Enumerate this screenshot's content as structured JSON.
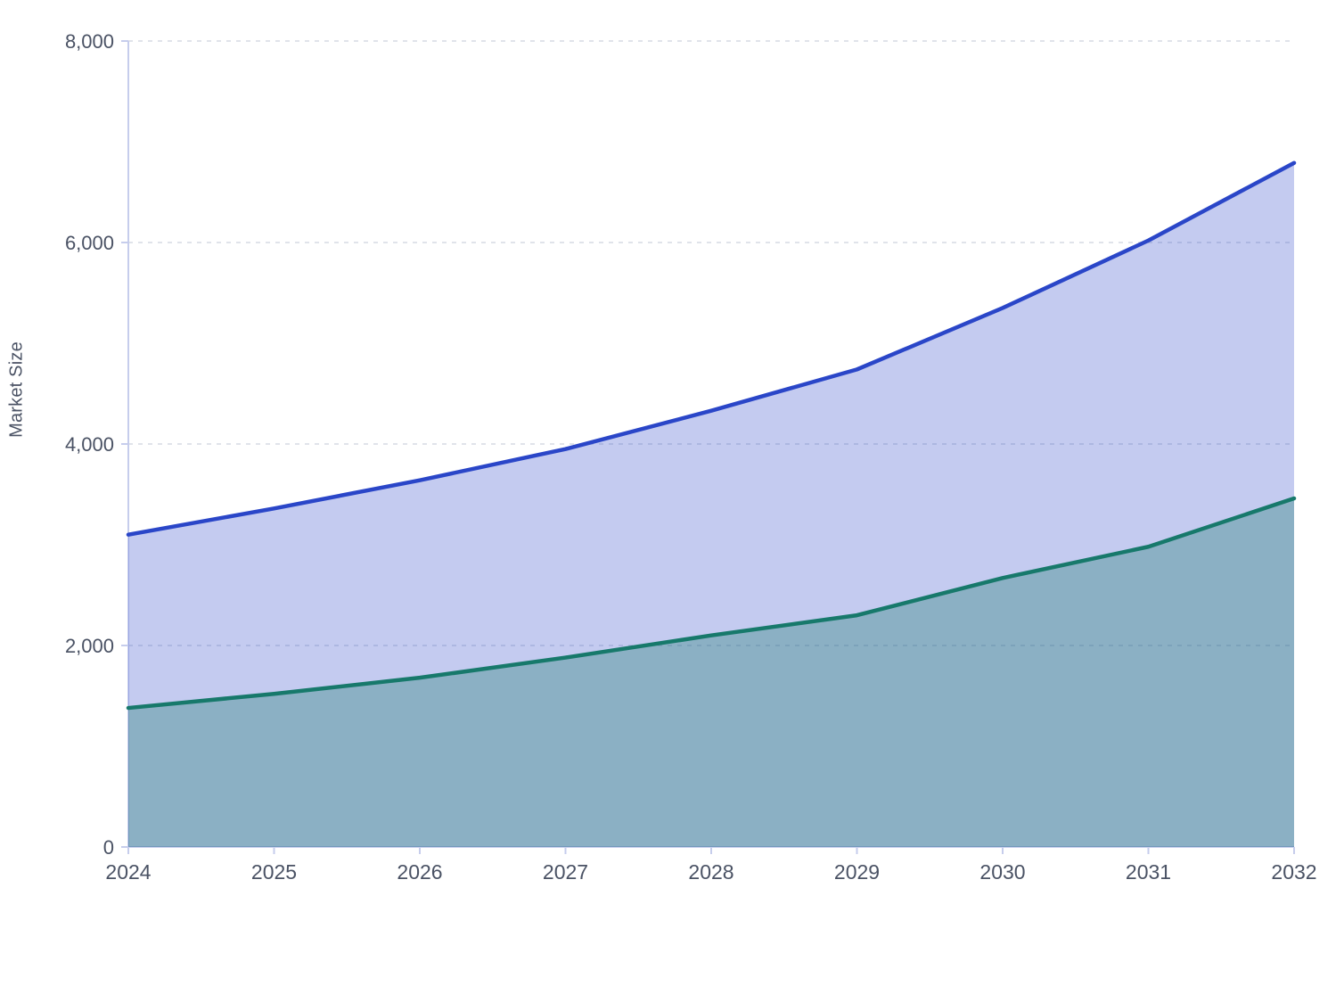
{
  "chart_data": {
    "type": "area",
    "title": "",
    "xlabel": "",
    "ylabel": "Market Size",
    "x": [
      2024,
      2025,
      2026,
      2027,
      2028,
      2029,
      2030,
      2031,
      2032
    ],
    "x_tick_labels": [
      "2024",
      "2025",
      "2026",
      "2027",
      "2028",
      "2029",
      "2030",
      "2031",
      "2032"
    ],
    "ylim": [
      0,
      8000
    ],
    "yticks": {
      "values": [
        0,
        2000,
        4000,
        6000,
        8000
      ],
      "labels": [
        "0",
        "2,000",
        "4,000",
        "6,000",
        "8,000"
      ]
    },
    "grid": "horizontal-dashed",
    "legend_position": "none",
    "series": [
      {
        "name": "",
        "values": [
          3100,
          3360,
          3640,
          3950,
          4330,
          4740,
          5350,
          6020,
          6790
        ],
        "line_color": "#2a46c8",
        "fill_color": "rgba(42,70,200,0.28)"
      },
      {
        "name": "",
        "values": [
          1380,
          1520,
          1680,
          1880,
          2100,
          2300,
          2670,
          2980,
          3460
        ],
        "line_color": "#17796b",
        "fill_color": "rgba(23,121,107,0.33)"
      }
    ],
    "colors": {
      "axis": "#c6cdec",
      "gridline": "#e0e3ea",
      "tick_text": "#4a5264",
      "background": "#ffffff"
    }
  }
}
